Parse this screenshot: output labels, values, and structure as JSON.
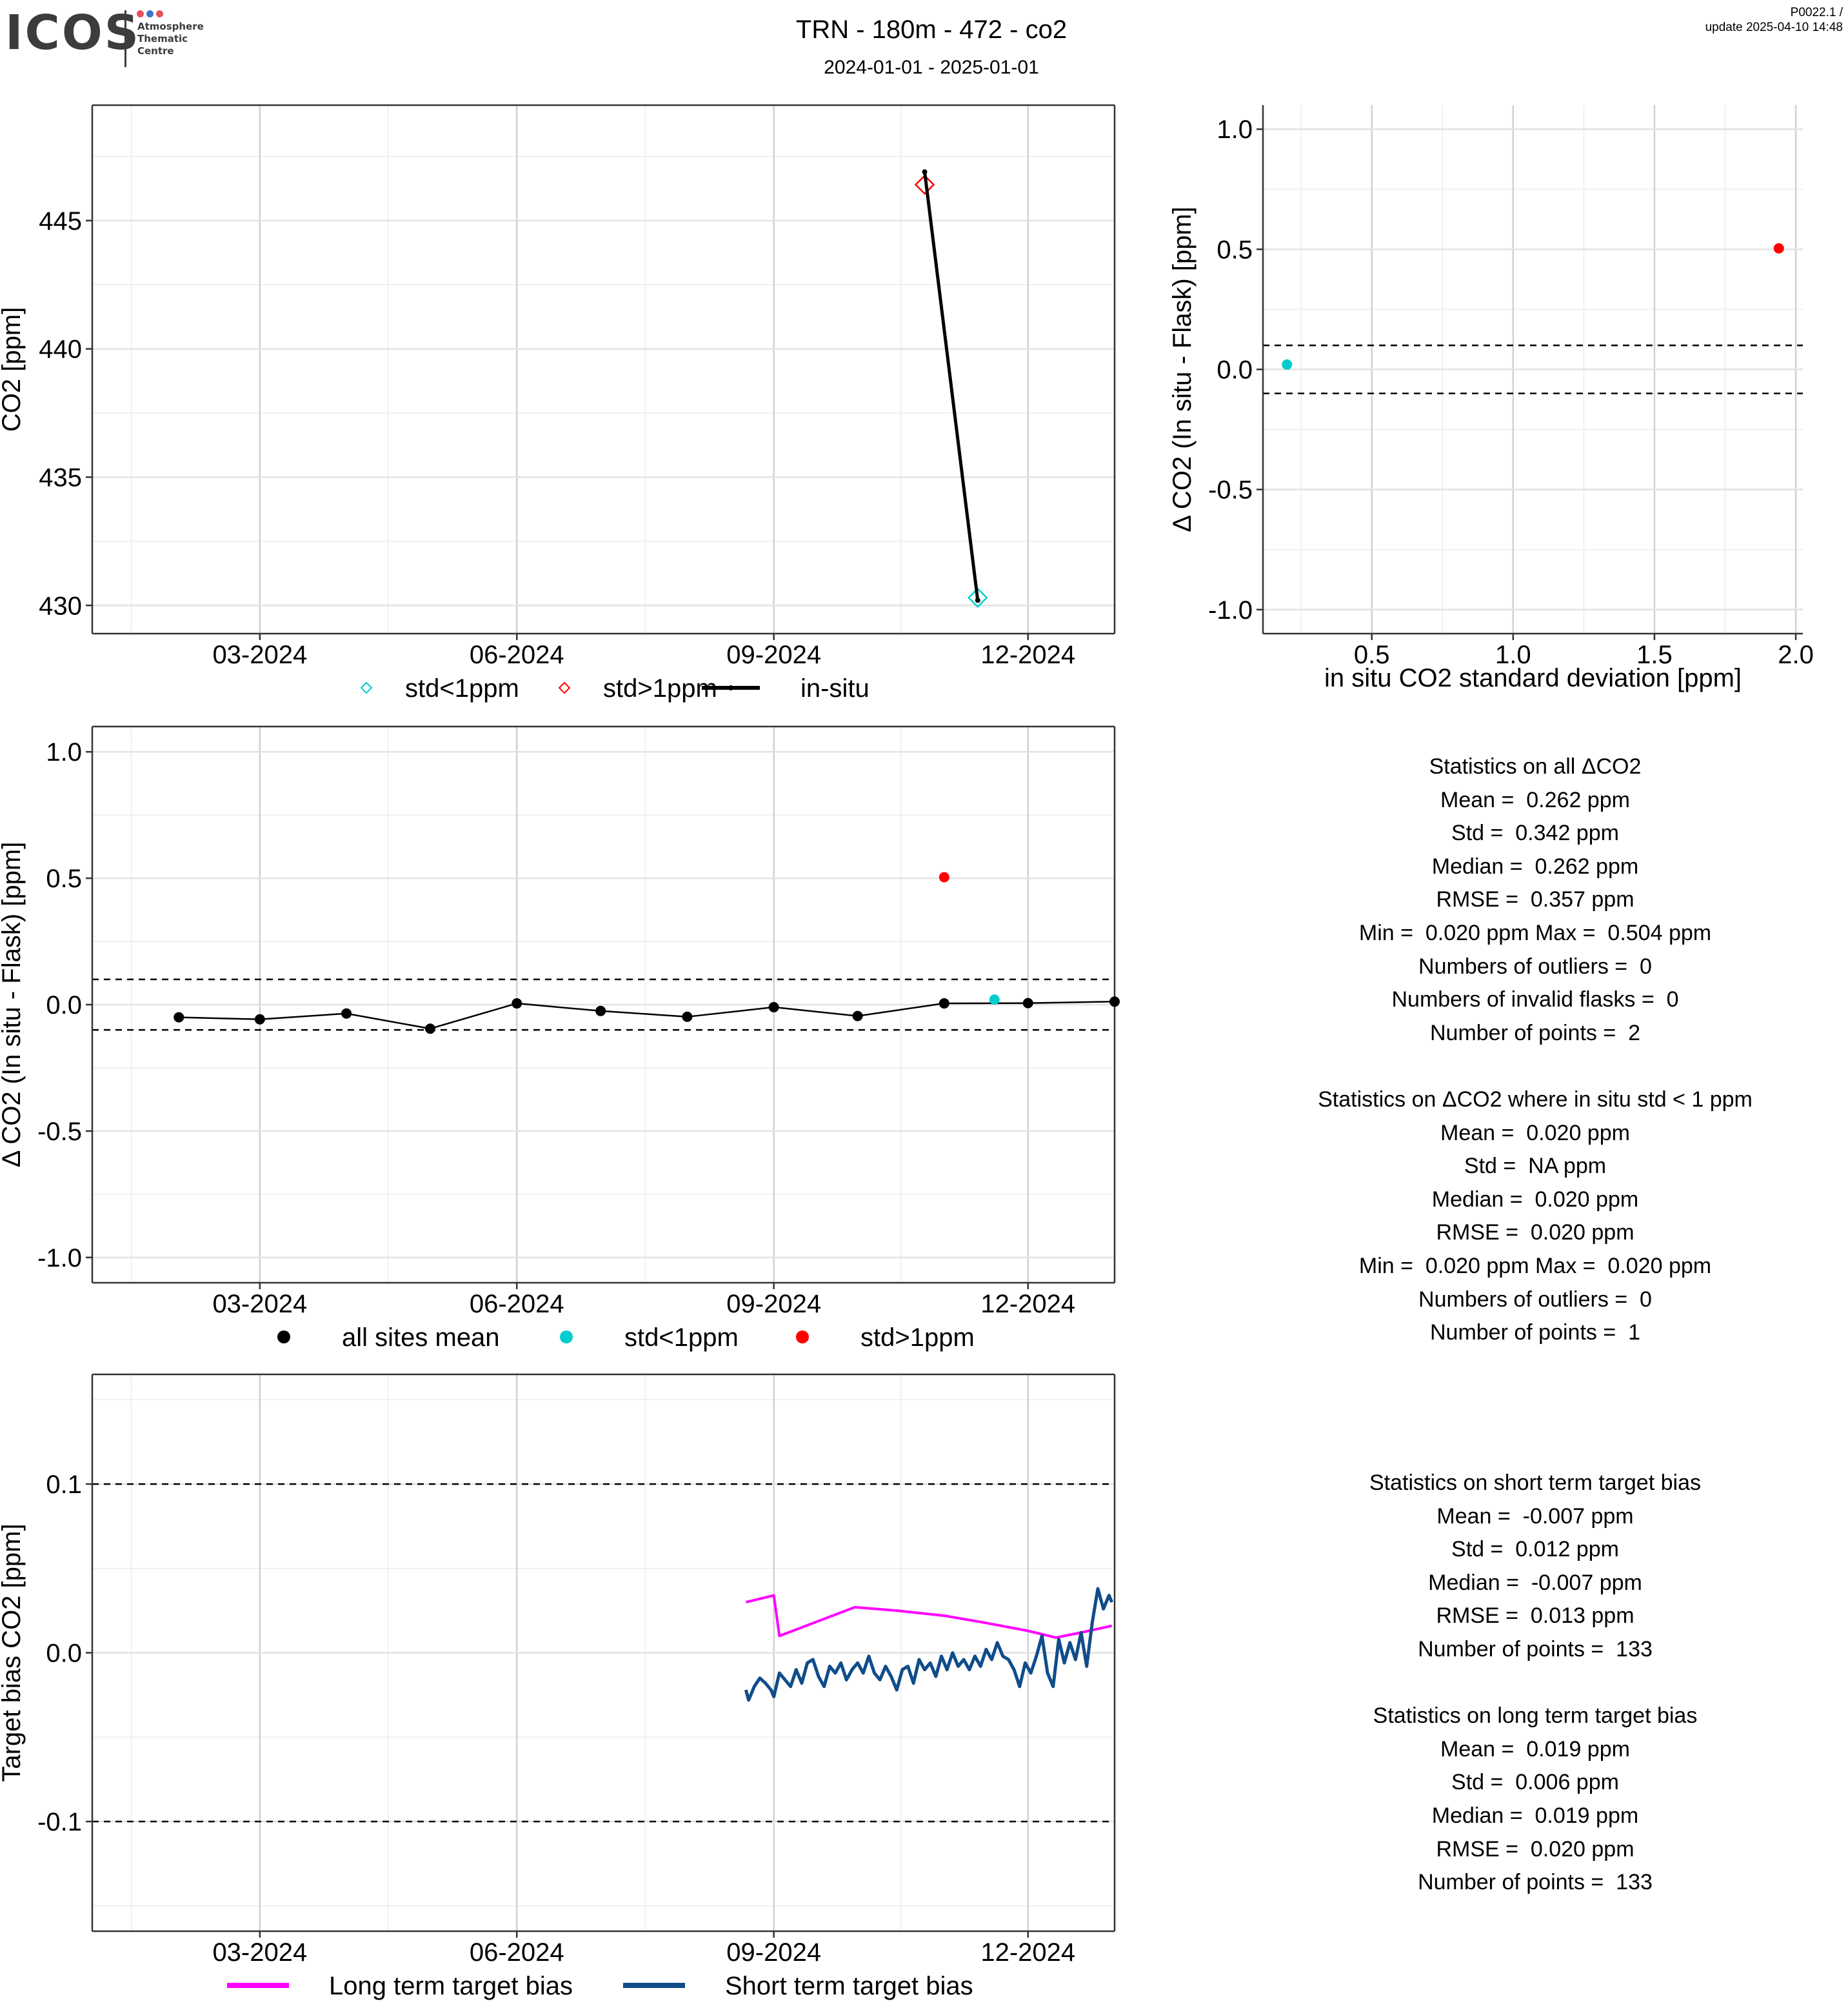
{
  "header": {
    "logo_text": "ICOS",
    "logo_sub": [
      "Atmosphere",
      "Thematic",
      "Centre"
    ],
    "logo_dot_colors": [
      "#e8505b",
      "#3a78c2",
      "#e8505b"
    ],
    "title": "TRN - 180m - 472 - co2",
    "subtitle": "2024-01-01 - 2025-01-01",
    "version": "P0022.1 /",
    "update": "update  2025-04-10 14:48"
  },
  "colors": {
    "std_lt_1": "#00CDCD",
    "std_gt_1": "#FF0000",
    "insitu": "#000000",
    "long_term": "#FF00FF",
    "short_term": "#0F4C8A"
  },
  "chart_data": [
    {
      "id": "timeseries",
      "type": "line",
      "ylabel": "CO2 [ppm]",
      "xlabel": "",
      "x_type": "date",
      "xlim": [
        "2024-01-01",
        "2025-01-01"
      ],
      "ylim": [
        428.9,
        449.5
      ],
      "x_ticks": [
        "2024-03-01",
        "2024-06-01",
        "2024-09-01",
        "2024-12-01"
      ],
      "x_tick_labels": [
        "03-2024",
        "06-2024",
        "09-2024",
        "12-2024"
      ],
      "y_ticks": [
        430,
        435,
        440,
        445
      ],
      "y_tick_labels": [
        "430",
        "435",
        "440",
        "445"
      ],
      "grid": true,
      "legend_position": "bottom",
      "series": [
        {
          "name": "std<1ppm",
          "marker": "diamond-open",
          "color": "#00CDCD",
          "points": [
            {
              "x": "2024-11-13",
              "y": 430.3
            }
          ]
        },
        {
          "name": "std>1ppm",
          "marker": "diamond-open",
          "color": "#FF0000",
          "points": [
            {
              "x": "2024-10-25",
              "y": 446.4
            }
          ]
        },
        {
          "name": "in-situ",
          "marker": "line",
          "color": "#000000",
          "points": [
            {
              "x": "2024-10-25",
              "y": 446.9
            },
            {
              "x": "2024-11-13",
              "y": 430.2
            }
          ]
        }
      ],
      "legend": [
        "std<1ppm",
        "std>1ppm",
        "in-situ"
      ]
    },
    {
      "id": "scatter_std",
      "type": "scatter",
      "ylabel": "Δ CO2 (In situ - Flask) [ppm]",
      "xlabel": "in situ CO2 standard deviation [ppm]",
      "xlim": [
        0.115,
        2.025
      ],
      "ylim": [
        -1.1,
        1.1
      ],
      "x_ticks": [
        0.5,
        1.0,
        1.5,
        2.0
      ],
      "x_tick_labels": [
        "0.5",
        "1.0",
        "1.5",
        "2.0"
      ],
      "y_ticks": [
        -1.0,
        -0.5,
        0.0,
        0.5,
        1.0
      ],
      "y_tick_labels": [
        "-1.0",
        "-0.5",
        "0.0",
        "0.5",
        "1.0"
      ],
      "hlines": [
        0.1,
        -0.1
      ],
      "grid": true,
      "series": [
        {
          "name": "std<1ppm",
          "color": "#00CDCD",
          "points": [
            {
              "x": 0.2,
              "y": 0.02
            }
          ]
        },
        {
          "name": "std>1ppm",
          "color": "#FF0000",
          "points": [
            {
              "x": 1.94,
              "y": 0.504
            }
          ]
        }
      ]
    },
    {
      "id": "delta_timeseries",
      "type": "scatter",
      "ylabel": "Δ CO2 (In situ - Flask) [ppm]",
      "xlabel": "",
      "x_type": "date",
      "xlim": [
        "2024-01-01",
        "2025-01-01"
      ],
      "ylim": [
        -1.1,
        1.1
      ],
      "x_ticks": [
        "2024-03-01",
        "2024-06-01",
        "2024-09-01",
        "2024-12-01"
      ],
      "x_tick_labels": [
        "03-2024",
        "06-2024",
        "09-2024",
        "12-2024"
      ],
      "y_ticks": [
        -1.0,
        -0.5,
        0.0,
        0.5,
        1.0
      ],
      "y_tick_labels": [
        "-1.0",
        "-0.5",
        "0.0",
        "0.5",
        "1.0"
      ],
      "hlines": [
        0.1,
        -0.1
      ],
      "grid": true,
      "legend_position": "bottom",
      "series": [
        {
          "name": "all sites mean",
          "marker": "line+points",
          "color": "#000000",
          "points": [
            {
              "x": "2024-02-01",
              "y": -0.05
            },
            {
              "x": "2024-03-01",
              "y": -0.058
            },
            {
              "x": "2024-04-01",
              "y": -0.035
            },
            {
              "x": "2024-05-01",
              "y": -0.095
            },
            {
              "x": "2024-06-01",
              "y": 0.005
            },
            {
              "x": "2024-07-01",
              "y": -0.025
            },
            {
              "x": "2024-08-01",
              "y": -0.048
            },
            {
              "x": "2024-09-01",
              "y": -0.01
            },
            {
              "x": "2024-10-01",
              "y": -0.045
            },
            {
              "x": "2024-11-01",
              "y": 0.005
            },
            {
              "x": "2024-12-01",
              "y": 0.006
            },
            {
              "x": "2025-01-01",
              "y": 0.012
            }
          ]
        },
        {
          "name": "std<1ppm",
          "marker": "point",
          "color": "#00CDCD",
          "points": [
            {
              "x": "2024-11-19",
              "y": 0.02
            }
          ]
        },
        {
          "name": "std>1ppm",
          "marker": "point",
          "color": "#FF0000",
          "points": [
            {
              "x": "2024-11-01",
              "y": 0.504
            }
          ]
        }
      ],
      "legend": [
        "all sites mean",
        "std<1ppm",
        "std>1ppm"
      ]
    },
    {
      "id": "target_bias",
      "type": "line",
      "ylabel": "Target bias CO2 [ppm]",
      "xlabel": "",
      "x_type": "date",
      "xlim": [
        "2024-01-01",
        "2025-01-01"
      ],
      "ylim": [
        -0.165,
        0.165
      ],
      "x_ticks": [
        "2024-03-01",
        "2024-06-01",
        "2024-09-01",
        "2024-12-01"
      ],
      "x_tick_labels": [
        "03-2024",
        "06-2024",
        "09-2024",
        "12-2024"
      ],
      "y_ticks": [
        -0.1,
        0.0,
        0.1
      ],
      "y_tick_labels": [
        "-0.1",
        "0.0",
        "0.1"
      ],
      "hlines": [
        0.1,
        -0.1
      ],
      "grid": true,
      "legend_position": "bottom",
      "series": [
        {
          "name": "Long term target bias",
          "color": "#FF00FF",
          "points": [
            {
              "x": "2024-08-22",
              "y": 0.03
            },
            {
              "x": "2024-09-01",
              "y": 0.034
            },
            {
              "x": "2024-09-03",
              "y": 0.01
            },
            {
              "x": "2024-09-30",
              "y": 0.027
            },
            {
              "x": "2024-10-15",
              "y": 0.025
            },
            {
              "x": "2024-11-01",
              "y": 0.022
            },
            {
              "x": "2024-11-15",
              "y": 0.018
            },
            {
              "x": "2024-12-01",
              "y": 0.013
            },
            {
              "x": "2024-12-11",
              "y": 0.009
            },
            {
              "x": "2024-12-20",
              "y": 0.012
            },
            {
              "x": "2024-12-31",
              "y": 0.016
            }
          ]
        },
        {
          "name": "Short term target bias",
          "color": "#0F4C8A",
          "points": [
            {
              "x": "2024-08-22",
              "y": -0.022
            },
            {
              "x": "2024-08-23",
              "y": -0.028
            },
            {
              "x": "2024-08-25",
              "y": -0.02
            },
            {
              "x": "2024-08-27",
              "y": -0.015
            },
            {
              "x": "2024-08-29",
              "y": -0.018
            },
            {
              "x": "2024-08-31",
              "y": -0.022
            },
            {
              "x": "2024-09-01",
              "y": -0.026
            },
            {
              "x": "2024-09-03",
              "y": -0.012
            },
            {
              "x": "2024-09-05",
              "y": -0.016
            },
            {
              "x": "2024-09-07",
              "y": -0.02
            },
            {
              "x": "2024-09-09",
              "y": -0.01
            },
            {
              "x": "2024-09-11",
              "y": -0.018
            },
            {
              "x": "2024-09-13",
              "y": -0.006
            },
            {
              "x": "2024-09-15",
              "y": -0.004
            },
            {
              "x": "2024-09-17",
              "y": -0.014
            },
            {
              "x": "2024-09-19",
              "y": -0.02
            },
            {
              "x": "2024-09-21",
              "y": -0.008
            },
            {
              "x": "2024-09-23",
              "y": -0.012
            },
            {
              "x": "2024-09-25",
              "y": -0.006
            },
            {
              "x": "2024-09-27",
              "y": -0.016
            },
            {
              "x": "2024-09-29",
              "y": -0.01
            },
            {
              "x": "2024-10-01",
              "y": -0.006
            },
            {
              "x": "2024-10-03",
              "y": -0.012
            },
            {
              "x": "2024-10-05",
              "y": -0.002
            },
            {
              "x": "2024-10-07",
              "y": -0.012
            },
            {
              "x": "2024-10-09",
              "y": -0.016
            },
            {
              "x": "2024-10-11",
              "y": -0.008
            },
            {
              "x": "2024-10-13",
              "y": -0.014
            },
            {
              "x": "2024-10-15",
              "y": -0.022
            },
            {
              "x": "2024-10-17",
              "y": -0.01
            },
            {
              "x": "2024-10-19",
              "y": -0.008
            },
            {
              "x": "2024-10-21",
              "y": -0.018
            },
            {
              "x": "2024-10-23",
              "y": -0.004
            },
            {
              "x": "2024-10-25",
              "y": -0.01
            },
            {
              "x": "2024-10-27",
              "y": -0.006
            },
            {
              "x": "2024-10-29",
              "y": -0.014
            },
            {
              "x": "2024-10-31",
              "y": -0.002
            },
            {
              "x": "2024-11-02",
              "y": -0.01
            },
            {
              "x": "2024-11-04",
              "y": 0.0
            },
            {
              "x": "2024-11-06",
              "y": -0.008
            },
            {
              "x": "2024-11-08",
              "y": -0.004
            },
            {
              "x": "2024-11-10",
              "y": -0.01
            },
            {
              "x": "2024-11-12",
              "y": -0.002
            },
            {
              "x": "2024-11-14",
              "y": -0.008
            },
            {
              "x": "2024-11-16",
              "y": 0.002
            },
            {
              "x": "2024-11-18",
              "y": -0.004
            },
            {
              "x": "2024-11-20",
              "y": 0.006
            },
            {
              "x": "2024-11-22",
              "y": -0.002
            },
            {
              "x": "2024-11-24",
              "y": -0.004
            },
            {
              "x": "2024-11-26",
              "y": -0.01
            },
            {
              "x": "2024-11-28",
              "y": -0.02
            },
            {
              "x": "2024-11-30",
              "y": -0.006
            },
            {
              "x": "2024-12-02",
              "y": -0.012
            },
            {
              "x": "2024-12-04",
              "y": -0.002
            },
            {
              "x": "2024-12-06",
              "y": 0.01
            },
            {
              "x": "2024-12-08",
              "y": -0.012
            },
            {
              "x": "2024-12-10",
              "y": -0.02
            },
            {
              "x": "2024-12-12",
              "y": 0.008
            },
            {
              "x": "2024-12-14",
              "y": -0.006
            },
            {
              "x": "2024-12-16",
              "y": 0.006
            },
            {
              "x": "2024-12-18",
              "y": -0.004
            },
            {
              "x": "2024-12-20",
              "y": 0.012
            },
            {
              "x": "2024-12-22",
              "y": -0.008
            },
            {
              "x": "2024-12-24",
              "y": 0.018
            },
            {
              "x": "2024-12-26",
              "y": 0.038
            },
            {
              "x": "2024-12-28",
              "y": 0.026
            },
            {
              "x": "2024-12-30",
              "y": 0.034
            },
            {
              "x": "2024-12-31",
              "y": 0.03
            }
          ]
        }
      ],
      "legend": [
        "Long term target bias",
        "Short term target bias"
      ]
    }
  ],
  "stats_all": {
    "lines": [
      "Statistics on all ΔCO2",
      "Mean =  0.262 ppm",
      "Std =  0.342 ppm",
      "Median =  0.262 ppm",
      "RMSE =  0.357 ppm",
      "Min =  0.020 ppm Max =  0.504 ppm",
      "Numbers of outliers =  0",
      "Numbers of invalid flasks =  0",
      "Number of points =  2",
      "",
      "Statistics on ΔCO2 where in situ std < 1 ppm",
      "Mean =  0.020 ppm",
      "Std =  NA ppm",
      "Median =  0.020 ppm",
      "RMSE =  0.020 ppm",
      "Min =  0.020 ppm Max =  0.020 ppm",
      "Numbers of outliers =  0",
      "Number of points =  1"
    ]
  },
  "stats_bias": {
    "lines": [
      "Statistics on short term target bias",
      "Mean =  -0.007 ppm",
      "Std =  0.012 ppm",
      "Median =  -0.007 ppm",
      "RMSE =  0.013 ppm",
      "Number of points =  133",
      "",
      "Statistics on long term target bias",
      "Mean =  0.019 ppm",
      "Std =  0.006 ppm",
      "Median =  0.019 ppm",
      "RMSE =  0.020 ppm",
      "Number of points =  133"
    ]
  }
}
